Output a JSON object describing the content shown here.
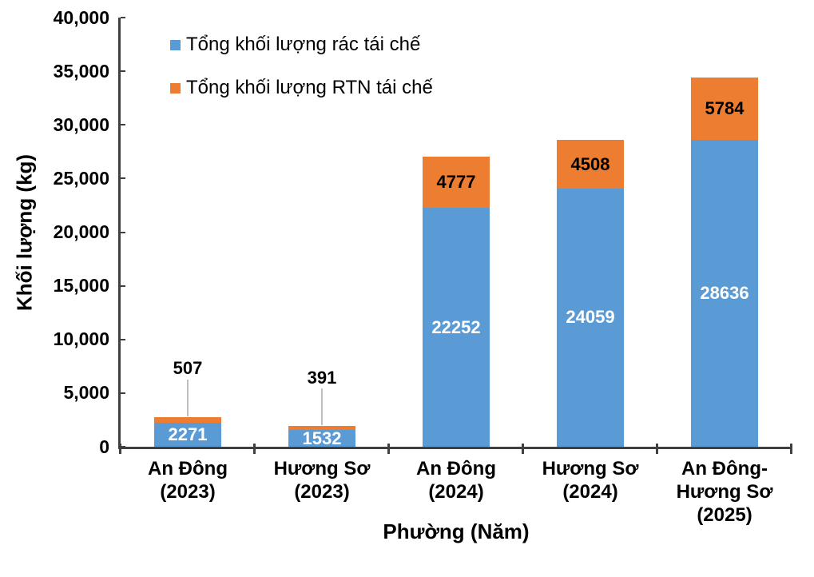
{
  "chart_data": {
    "type": "bar",
    "stacked": true,
    "title": "",
    "xlabel": "Phường (Năm)",
    "ylabel": "Khối lượng (kg)",
    "ylim": [
      0,
      40000
    ],
    "ytick_step": 5000,
    "ytick_labels": [
      "0",
      "5,000",
      "10,000",
      "15,000",
      "20,000",
      "25,000",
      "30,000",
      "35,000",
      "40,000"
    ],
    "grid": false,
    "legend_position": "top-left",
    "categories": [
      "An Đông\n(2023)",
      "Hương Sơ\n(2023)",
      "An Đông\n(2024)",
      "Hương Sơ\n(2024)",
      "An Đông-\nHương Sơ\n(2025)"
    ],
    "series": [
      {
        "name": "Tổng khối lượng rác tái chế",
        "color": "#5B9BD5",
        "label_color": "#FFFFFF",
        "values": [
          2271,
          1532,
          22252,
          24059,
          28636
        ]
      },
      {
        "name": "Tổng khối lượng RTN tái chế",
        "color": "#ED7D31",
        "label_color": "#000000",
        "values": [
          507,
          391,
          4777,
          4508,
          5784
        ]
      }
    ],
    "colors": {
      "axis": "#404040",
      "leader_line": "#BFBFBF",
      "background": "#FFFFFF",
      "text": "#000000"
    }
  }
}
